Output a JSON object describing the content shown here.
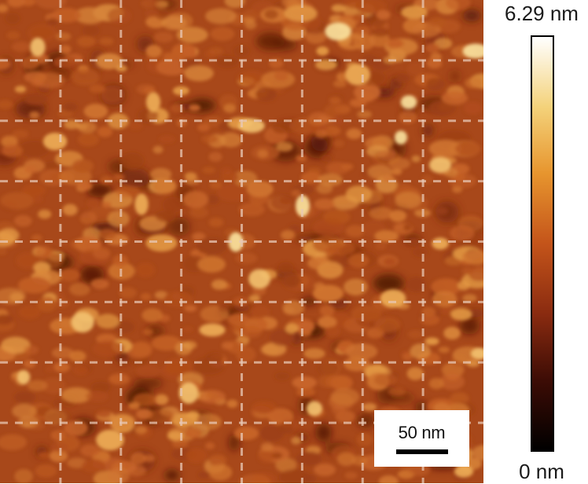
{
  "image": {
    "description_name": "afm-height-map",
    "base_color": "#a8481a",
    "grid_divisions": 8
  },
  "scale_bar": {
    "label": "50 nm"
  },
  "colorbar": {
    "max_label": "6.29 nm",
    "min_label": "0 nm",
    "max_value": 6.29,
    "min_value": 0,
    "unit": "nm",
    "colors": [
      "#ffffff",
      "#f4d27a",
      "#e7952e",
      "#c4541a",
      "#8a2b10",
      "#3d0c05",
      "#000000"
    ]
  }
}
